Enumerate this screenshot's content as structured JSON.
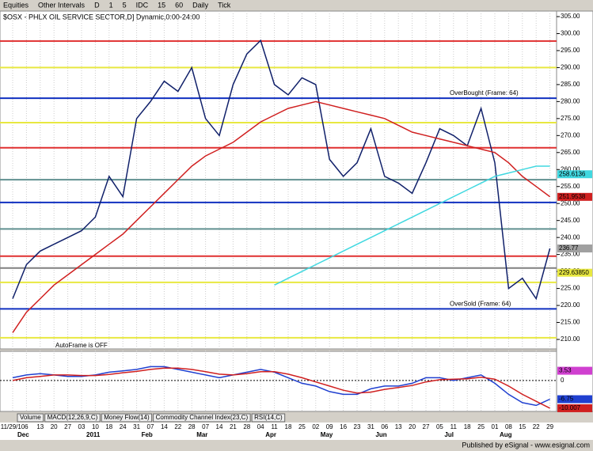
{
  "toolbar": {
    "items": [
      "Equities",
      "Other Intervals",
      "D",
      "1",
      "5",
      "IDC",
      "15",
      "60",
      "Daily",
      "Tick"
    ]
  },
  "chart_data": {
    "type": "line",
    "title": "$OSX - PHLX OIL SERVICE SECTOR,D] Dynamic,0:00-24:00",
    "categories": [
      "11/29/10",
      "6",
      "13",
      "20",
      "27",
      "03",
      "10",
      "18",
      "24",
      "31",
      "07",
      "14",
      "22",
      "28",
      "07",
      "14",
      "21",
      "28",
      "04",
      "11",
      "18",
      "25",
      "02",
      "09",
      "16",
      "23",
      "31",
      "06",
      "13",
      "20",
      "27",
      "05",
      "11",
      "18",
      "25",
      "01",
      "08",
      "15",
      "22",
      "29"
    ],
    "months": [
      "Dec",
      null,
      null,
      null,
      null,
      "2011",
      null,
      null,
      null,
      "Feb",
      null,
      null,
      null,
      "Mar",
      null,
      null,
      null,
      null,
      "Apr",
      null,
      null,
      null,
      "May",
      null,
      null,
      null,
      "Jun",
      null,
      null,
      null,
      null,
      "Jul",
      null,
      null,
      null,
      "Aug",
      null,
      null,
      null,
      null
    ],
    "series": [
      {
        "name": "Price",
        "color": "#10206a",
        "values": [
          222,
          232,
          236,
          238,
          240,
          242,
          246,
          258,
          252,
          275,
          280,
          286,
          283,
          290,
          275,
          270,
          285,
          294,
          298,
          285,
          282,
          287,
          285,
          263,
          258,
          262,
          272,
          258,
          256,
          253,
          262,
          272,
          270,
          267,
          278,
          262,
          225,
          228,
          222,
          236.77
        ]
      },
      {
        "name": "MA",
        "color": "#d02020",
        "values": [
          212,
          218,
          222,
          226,
          229,
          232,
          235,
          238,
          241,
          245,
          249,
          253,
          257,
          261,
          264,
          266,
          268,
          271,
          274,
          276,
          278,
          279,
          280,
          279,
          278,
          277,
          276,
          275,
          273,
          271,
          270,
          269,
          268,
          267,
          266,
          265,
          262,
          258,
          255,
          252
        ]
      },
      {
        "name": "MA2",
        "color": "#40d8e0",
        "values": [
          null,
          null,
          null,
          null,
          null,
          null,
          null,
          null,
          null,
          null,
          null,
          null,
          null,
          null,
          null,
          null,
          null,
          null,
          null,
          226,
          228,
          230,
          232,
          234,
          236,
          238,
          240,
          242,
          244,
          246,
          248,
          250,
          252,
          254,
          256,
          258,
          259,
          260,
          261,
          261
        ]
      }
    ],
    "ylim": [
      210,
      305
    ],
    "yticks": [
      {
        "value": 305,
        "label": "305.00"
      },
      {
        "value": 300,
        "label": "300.00"
      },
      {
        "value": 295,
        "label": "295.00"
      },
      {
        "value": 290,
        "label": "290.00"
      },
      {
        "value": 285,
        "label": "285.00"
      },
      {
        "value": 280,
        "label": "280.00"
      },
      {
        "value": 275,
        "label": "275.00"
      },
      {
        "value": 270,
        "label": "270.00"
      },
      {
        "value": 265,
        "label": "265.00"
      },
      {
        "value": 260,
        "label": "260.00"
      },
      {
        "value": 255,
        "label": "255.00"
      },
      {
        "value": 250,
        "label": "250.00"
      },
      {
        "value": 245,
        "label": "245.00"
      },
      {
        "value": 240,
        "label": "240.00"
      },
      {
        "value": 235,
        "label": "235.00"
      },
      {
        "value": 230,
        "label": "230.00"
      },
      {
        "value": 225,
        "label": "225.00"
      },
      {
        "value": 220,
        "label": "220.00"
      },
      {
        "value": 215,
        "label": "215.00"
      },
      {
        "value": 210,
        "label": "210.00"
      }
    ],
    "levels": [
      {
        "value": 297.8,
        "color": "#e03030"
      },
      {
        "value": 290,
        "color": "#e8e840"
      },
      {
        "value": 281,
        "color": "#1030c0",
        "label": "OverBought (Frame: 64)"
      },
      {
        "value": 273.8,
        "color": "#e8e840"
      },
      {
        "value": 266.4,
        "color": "#e03030"
      },
      {
        "value": 257,
        "color": "#609090"
      },
      {
        "value": 250.3,
        "color": "#1030c0"
      },
      {
        "value": 242.5,
        "color": "#609090"
      },
      {
        "value": 234.5,
        "color": "#e03030"
      },
      {
        "value": 231,
        "color": "#808080"
      },
      {
        "value": 226.8,
        "color": "#e8e840"
      },
      {
        "value": 219,
        "color": "#1030c0",
        "label": "OverSold (Frame: 64)"
      },
      {
        "value": 210.5,
        "color": "#e8e840"
      }
    ],
    "price_labels": [
      {
        "value": 258.6136,
        "label": "258.6136",
        "color": "#40d8e0"
      },
      {
        "value": 251.9538,
        "label": "251.9538",
        "color": "#d02020"
      },
      {
        "value": 236.77,
        "label": "236.77",
        "color": "#a0a0a0"
      },
      {
        "value": 229.6385,
        "label": "229.63850",
        "color": "#e8e840"
      }
    ],
    "annotation": "AutoFrame is OFF",
    "macd": {
      "ylim": [
        -10.6,
        9.7
      ],
      "yticks": [
        0
      ],
      "series": [
        {
          "name": "MACD",
          "color": "#2040d0",
          "values": [
            1,
            2,
            2.5,
            2,
            1.5,
            1.5,
            2,
            3,
            3.5,
            4,
            5,
            5,
            4,
            3,
            2,
            1,
            2,
            3,
            4,
            3,
            1,
            -1,
            -2,
            -4,
            -5,
            -5,
            -3,
            -2,
            -2,
            -1,
            1,
            1,
            0,
            1,
            2,
            -1,
            -5,
            -8,
            -9,
            -6.75
          ]
        },
        {
          "name": "Signal",
          "color": "#d02020",
          "values": [
            0,
            1,
            1.5,
            2,
            2,
            1.8,
            1.8,
            2.2,
            2.8,
            3.3,
            4,
            4.5,
            4.5,
            4,
            3.2,
            2.3,
            2,
            2.5,
            3.2,
            3.2,
            2.3,
            1,
            -0.5,
            -2,
            -3.5,
            -4.5,
            -4.2,
            -3.2,
            -2.5,
            -1.8,
            -0.5,
            0.3,
            0.5,
            0.6,
            1.2,
            0.5,
            -2,
            -5,
            -7.5,
            -10.007
          ]
        }
      ],
      "labels": [
        {
          "value": 3.53,
          "label": "3.53",
          "color": "#d040d0"
        },
        {
          "value": -6.75,
          "label": "-6.75",
          "color": "#2040d0"
        },
        {
          "value": -10.007,
          "label": "-10.007",
          "color": "#d02020"
        }
      ]
    },
    "tabs": [
      "Volume",
      "MACD(12,26,9,C)",
      "Money Flow(14)",
      "Commodity Channel Index(23,C)",
      "RSI(14,C)"
    ]
  },
  "footer": "Published by eSignal - www.esignal.com"
}
